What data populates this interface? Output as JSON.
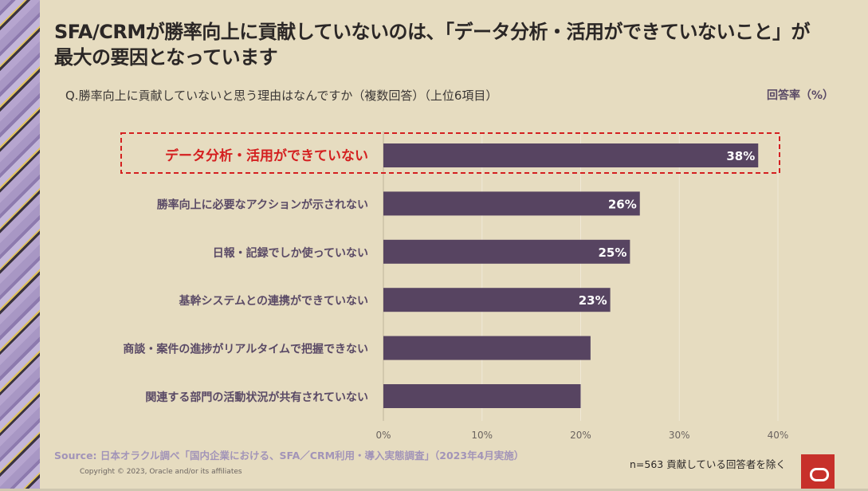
{
  "title": "SFA/CRMが勝率向上に貢献していないのは、「データ分析・活用ができていないこと」が最大の要因となっています",
  "question": "Q.勝率向上に貢献していないと思う理由はなんですか（複数回答）（上位6項目）",
  "source": "Source: 日本オラクル調べ「国内企業における、SFA／CRM利用・導入実態調査」（2023年4月実施）",
  "copyright": "Copyright © 2023, Oracle and/or its affiliates",
  "note": "n=563 貢献している回答者を除く",
  "colors": {
    "bar": "#574461",
    "highlight": "#d42020",
    "label": "#5a4a66"
  },
  "chart_data": {
    "type": "bar",
    "orientation": "horizontal",
    "ylabel": "回答率（%）",
    "categories": [
      "データ分析・活用ができていない",
      "勝率向上に必要なアクションが示されない",
      "日報・記録でしか使っていない",
      "基幹システムとの連携ができていない",
      "商談・案件の進捗がリアルタイムで把握できない",
      "関連する部門の活動状況が共有されていない"
    ],
    "values": [
      38,
      26,
      25,
      23,
      21,
      20
    ],
    "data_labels": [
      "38%",
      "26%",
      "25%",
      "23%",
      "",
      ""
    ],
    "highlighted": "データ分析・活用ができていない",
    "xlim": [
      0,
      40
    ],
    "ticks": [
      "0%",
      "10%",
      "20%",
      "30%",
      "40%"
    ],
    "grid": true
  }
}
